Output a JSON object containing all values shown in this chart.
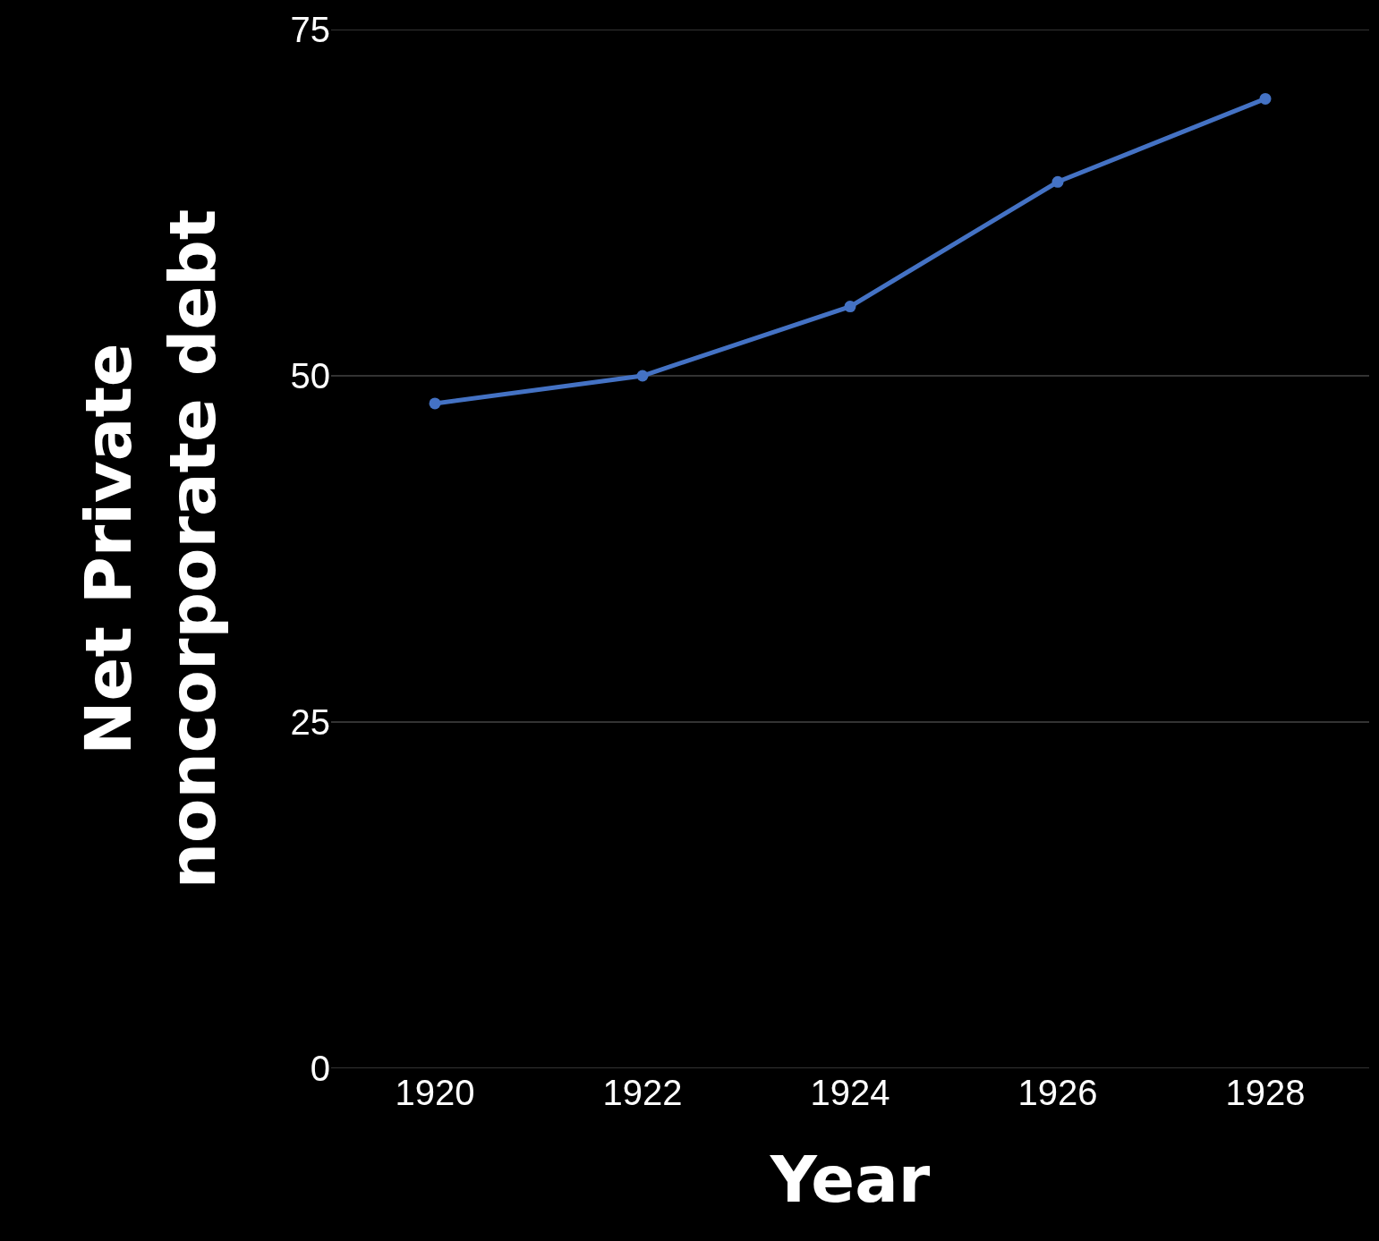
{
  "chart_data": {
    "type": "line",
    "xlabel": "Year",
    "ylabel": "Net Private noncorporate debt",
    "x": [
      1920,
      1922,
      1924,
      1926,
      1928
    ],
    "series": [
      {
        "color": "#4472c4",
        "values": [
          48,
          50,
          55,
          64,
          70
        ]
      }
    ],
    "xlim": [
      1919,
      1929
    ],
    "xticks": [
      1920,
      1922,
      1924,
      1926,
      1928
    ],
    "ylim": [
      0,
      75
    ],
    "yticks": [
      0,
      25,
      50,
      75
    ],
    "grid": "y",
    "marker": "circle",
    "line_style": "solid"
  }
}
